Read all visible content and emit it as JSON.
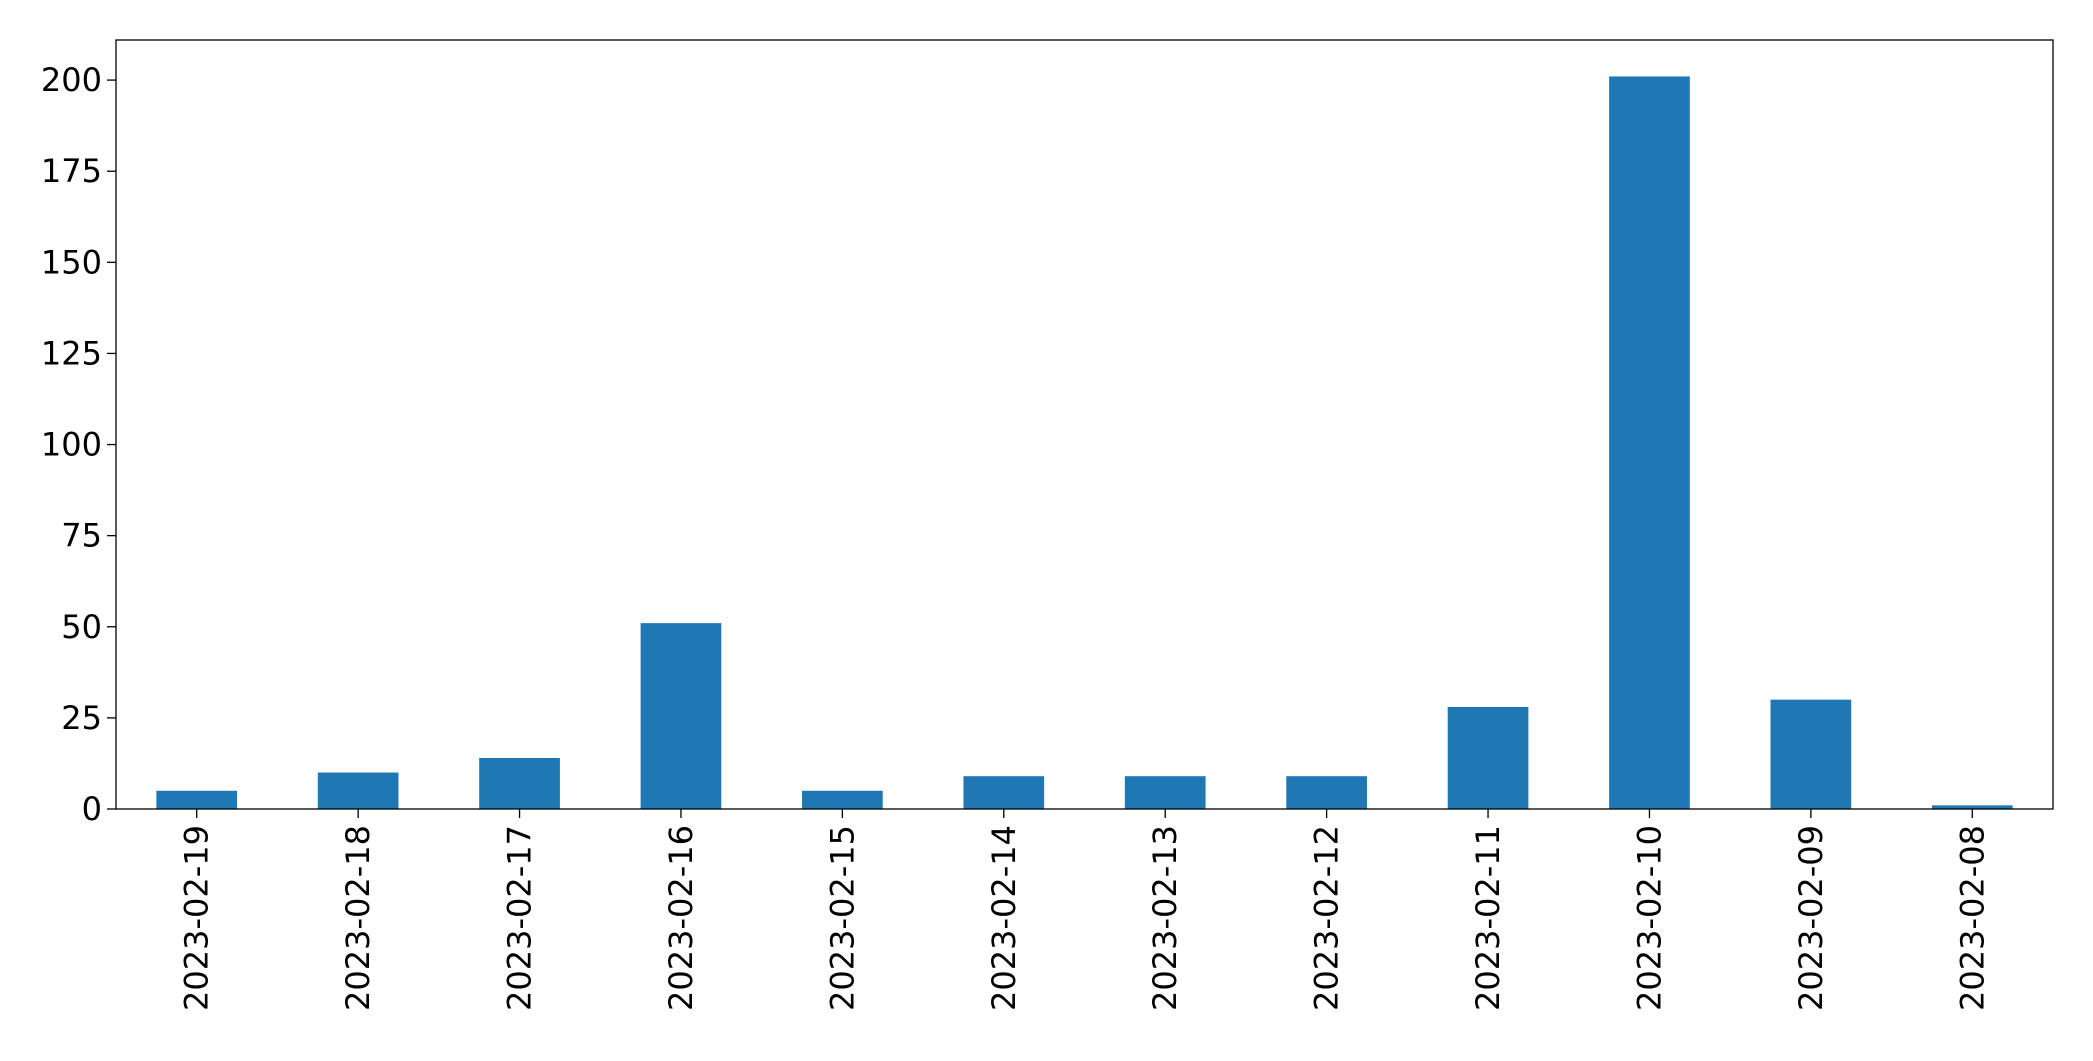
{
  "chart_data": {
    "type": "bar",
    "categories": [
      "2023-02-19",
      "2023-02-18",
      "2023-02-17",
      "2023-02-16",
      "2023-02-15",
      "2023-02-14",
      "2023-02-13",
      "2023-02-12",
      "2023-02-11",
      "2023-02-10",
      "2023-02-09",
      "2023-02-08"
    ],
    "values": [
      5,
      10,
      14,
      51,
      5,
      9,
      9,
      9,
      28,
      201,
      30,
      1
    ],
    "color": "#1f77b4",
    "ylim": [
      0,
      211
    ],
    "yticks": [
      0,
      25,
      50,
      75,
      100,
      125,
      150,
      175,
      200
    ]
  }
}
